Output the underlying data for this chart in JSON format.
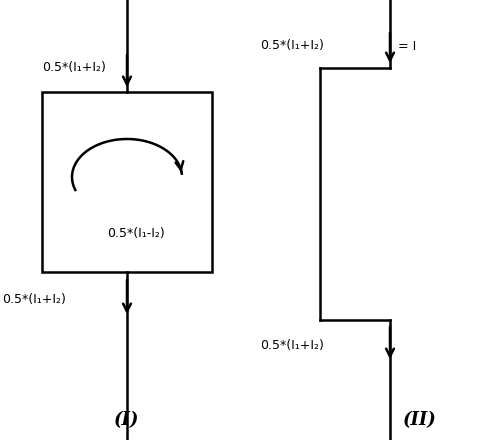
{
  "fig_width": 4.94,
  "fig_height": 4.4,
  "dpi": 100,
  "bg_color": "#ffffff",
  "line_color": "#000000",
  "top_label": "0.5*(I₁+I₂)",
  "bottom_label": "0.5*(I₁+I₂)",
  "loop_label": "0.5*(I₁-I₂)",
  "eq_label": "= I",
  "label_I": "(I)",
  "label_II": "(II)",
  "font_size": 9,
  "label_font_size": 13
}
